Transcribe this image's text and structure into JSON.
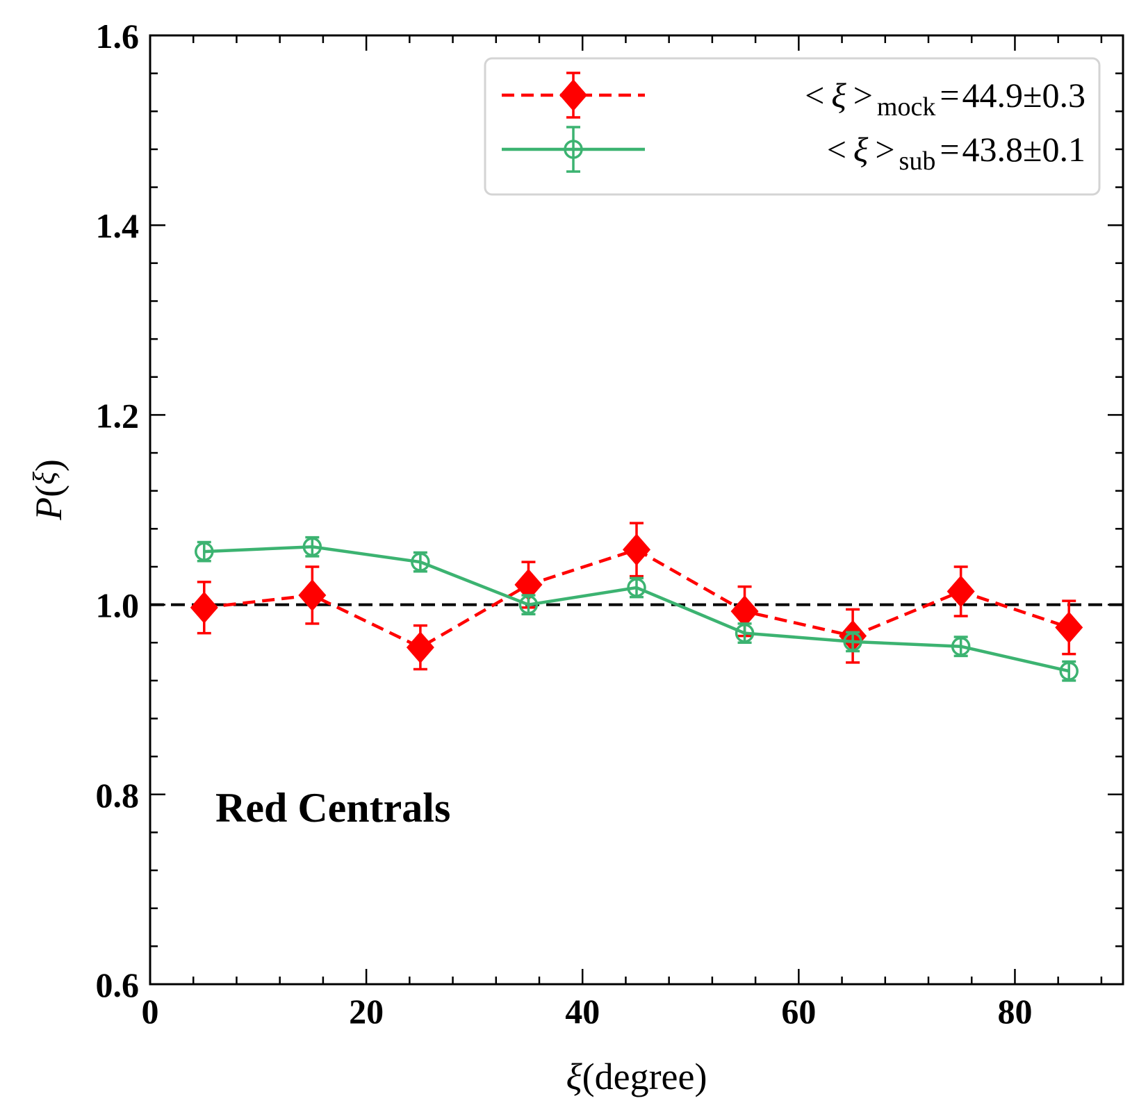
{
  "chart_data": {
    "type": "line",
    "xlabel_symbol": "ξ",
    "xlabel_unit": "(degree)",
    "ylabel_func": "P",
    "ylabel_arg": "ξ",
    "xlim": [
      0,
      90
    ],
    "ylim": [
      0.6,
      1.6
    ],
    "xticks": [
      0,
      20,
      40,
      60,
      80
    ],
    "yticks": [
      0.6,
      0.8,
      1.0,
      1.2,
      1.4,
      1.6
    ],
    "xtick_labels": [
      "0",
      "20",
      "40",
      "60",
      "80"
    ],
    "ytick_labels": [
      "0.6",
      "0.8",
      "1.0",
      "1.2",
      "1.4",
      "1.6"
    ],
    "grid": false,
    "reference_line_y": 1.0,
    "annotation": "Red Centrals",
    "legend_position": "top-right",
    "x": [
      5,
      15,
      25,
      35,
      45,
      55,
      65,
      75,
      85
    ],
    "series": [
      {
        "legend_sym": "ξ",
        "legend_sub": "mock",
        "legend_value": "44.9",
        "legend_pm": "±",
        "legend_err": "0.3",
        "color": "#ff0000",
        "marker": "filled-diamond",
        "line": "dashed",
        "values": [
          0.997,
          1.01,
          0.955,
          1.021,
          1.058,
          0.993,
          0.967,
          1.014,
          0.976
        ],
        "errors": [
          0.027,
          0.03,
          0.023,
          0.024,
          0.028,
          0.026,
          0.028,
          0.026,
          0.028
        ]
      },
      {
        "legend_sym": "ξ",
        "legend_sub": "sub",
        "legend_value": "43.8",
        "legend_pm": "±",
        "legend_err": "0.1",
        "color": "#3cb371",
        "marker": "open-circle",
        "line": "solid",
        "values": [
          1.056,
          1.061,
          1.045,
          1.0,
          1.018,
          0.97,
          0.961,
          0.956,
          0.93
        ],
        "errors": [
          0.01,
          0.01,
          0.01,
          0.01,
          0.01,
          0.01,
          0.01,
          0.01,
          0.01
        ]
      }
    ]
  }
}
